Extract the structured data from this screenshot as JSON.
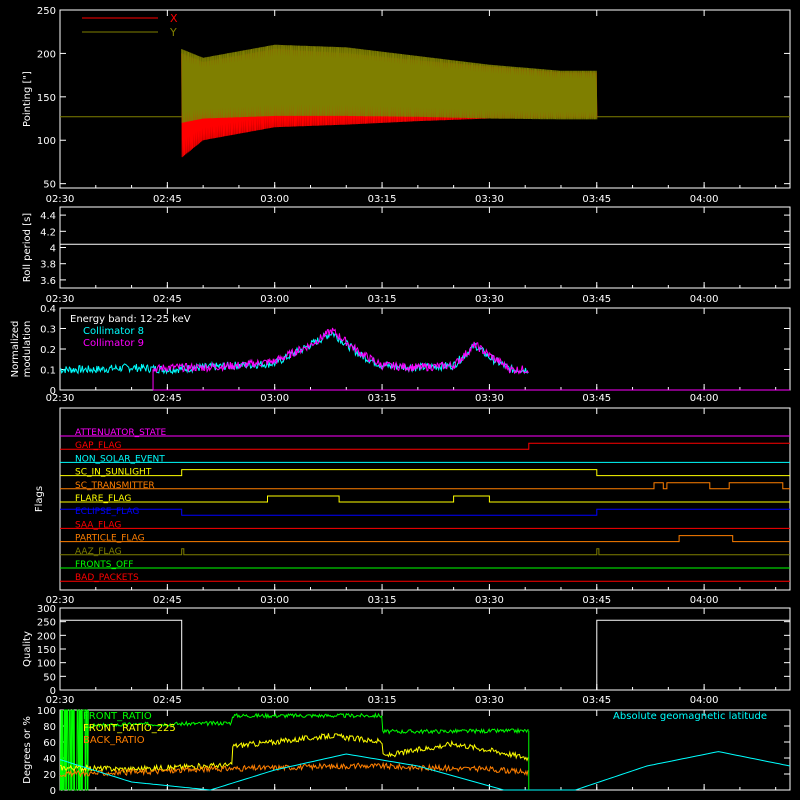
{
  "time_axis": {
    "ticks": [
      "02:30",
      "02:45",
      "03:00",
      "03:15",
      "03:30",
      "03:45",
      "04:00"
    ],
    "tick_minutes": [
      0,
      15,
      30,
      45,
      60,
      75,
      90
    ],
    "range_minutes": [
      0,
      102
    ]
  },
  "colors": {
    "background": "#000000",
    "foreground": "#ffffff",
    "red": "#ff0000",
    "olive": "#7f7f00",
    "cyan": "#00ffff",
    "magenta": "#ff00ff",
    "green": "#00ff00",
    "yellow": "#ffff00",
    "orange": "#ff7f00",
    "blue": "#0000ff"
  },
  "chart_data": [
    {
      "panel": "pointing",
      "type": "line",
      "ylabel": "Pointing [\"]",
      "ylim": [
        45,
        250
      ],
      "yticks": [
        50,
        100,
        150,
        200,
        250
      ],
      "legend": [
        {
          "name": "X",
          "color": "#ff0000"
        },
        {
          "name": "Y",
          "color": "#7f7f00"
        }
      ],
      "legend_position": "top-left",
      "baseline_value": 127,
      "oscillation_window_minutes": [
        17,
        75
      ],
      "x_envelope": {
        "minutes": [
          17,
          20,
          30,
          40,
          50,
          60,
          70,
          75
        ],
        "upper": [
          200,
          190,
          205,
          200,
          192,
          185,
          178,
          178
        ],
        "lower": [
          80,
          100,
          115,
          118,
          122,
          125,
          126,
          126
        ]
      },
      "y_envelope": {
        "minutes": [
          17,
          20,
          30,
          40,
          50,
          60,
          70,
          75
        ],
        "upper": [
          205,
          195,
          210,
          207,
          197,
          187,
          180,
          180
        ],
        "lower": [
          120,
          125,
          128,
          128,
          127,
          125,
          124,
          124
        ]
      }
    },
    {
      "panel": "roll_period",
      "type": "line",
      "ylabel": "Roll period [s]",
      "ylim": [
        3.5,
        4.5
      ],
      "yticks": [
        3.6,
        3.8,
        4.0,
        4.2,
        4.4
      ],
      "value": 4.04
    },
    {
      "panel": "modulation",
      "type": "line",
      "ylabel": "Normalized modulation",
      "ylim": [
        0,
        0.4
      ],
      "yticks": [
        0.0,
        0.1,
        0.2,
        0.3,
        0.4
      ],
      "annotation": "Energy band: 12-25 keV",
      "series": [
        {
          "name": "Collimator 8",
          "color": "#00ffff",
          "minutes": [
            0,
            5,
            10,
            15,
            20,
            25,
            30,
            35,
            38,
            42,
            45,
            50,
            55,
            58,
            60,
            63,
            65
          ],
          "values": [
            0.1,
            0.1,
            0.11,
            0.1,
            0.11,
            0.12,
            0.13,
            0.22,
            0.28,
            0.17,
            0.12,
            0.11,
            0.12,
            0.22,
            0.16,
            0.1,
            0.1
          ]
        },
        {
          "name": "Collimator 9",
          "color": "#ff00ff",
          "minutes": [
            13,
            15,
            20,
            25,
            30,
            35,
            38,
            42,
            45,
            50,
            55,
            58,
            60,
            63,
            65
          ],
          "values": [
            0.1,
            0.11,
            0.11,
            0.12,
            0.14,
            0.22,
            0.29,
            0.18,
            0.12,
            0.11,
            0.12,
            0.22,
            0.17,
            0.1,
            0.1
          ]
        }
      ],
      "data_end_minute": 65.5
    },
    {
      "panel": "flags",
      "type": "line",
      "ylabel": "Flags",
      "flags": [
        {
          "name": "ATTENUATOR_STATE",
          "color": "#ff00ff",
          "transitions": [],
          "initial": 0
        },
        {
          "name": "GAP_FLAG",
          "color": "#ff0000",
          "transitions": [
            65.5
          ],
          "initial": 0
        },
        {
          "name": "NON_SOLAR_EVENT",
          "color": "#00ffff",
          "transitions": [],
          "initial": 0
        },
        {
          "name": "SC_IN_SUNLIGHT",
          "color": "#ffff00",
          "transitions": [
            17,
            75
          ],
          "initial": 0
        },
        {
          "name": "SC_TRANSMITTER",
          "color": "#ff7f00",
          "transitions": [
            83,
            84.3,
            84.8,
            90.8,
            93.5,
            101
          ],
          "initial": 0
        },
        {
          "name": "FLARE_FLAG",
          "color": "#ffff00",
          "transitions": [
            29,
            39,
            55,
            60
          ],
          "initial": 0
        },
        {
          "name": "ECLIPSE_FLAG",
          "color": "#0000ff",
          "transitions": [
            17,
            75
          ],
          "initial": 1
        },
        {
          "name": "SAA_FLAG",
          "color": "#ff0000",
          "transitions": [],
          "initial": 0
        },
        {
          "name": "PARTICLE_FLAG",
          "color": "#ff7f00",
          "transitions": [
            86.5,
            94
          ],
          "initial": 0
        },
        {
          "name": "AAZ_FLAG",
          "color": "#7f7f00",
          "transitions": [
            17,
            17.3,
            75,
            75.3
          ],
          "initial": 0
        },
        {
          "name": "FRONTS_OFF",
          "color": "#00ff00",
          "transitions": [],
          "initial": 0
        },
        {
          "name": "BAD_PACKETS",
          "color": "#ff0000",
          "transitions": [],
          "initial": 0
        }
      ]
    },
    {
      "panel": "quality",
      "type": "line",
      "ylabel": "Quality",
      "ylim": [
        0,
        300
      ],
      "yticks": [
        0,
        50,
        100,
        150,
        200,
        250,
        300
      ],
      "minutes": [
        0,
        17,
        17.01,
        75,
        75.01,
        102
      ],
      "values": [
        255,
        255,
        0,
        0,
        255,
        255
      ]
    },
    {
      "panel": "degrees",
      "type": "line",
      "ylabel": "Degrees or %",
      "ylim": [
        0,
        100
      ],
      "yticks": [
        0,
        20,
        40,
        60,
        80,
        100
      ],
      "legend": [
        {
          "name": "FRONT_RATIO",
          "color": "#00ff00"
        },
        {
          "name": "FRONT_RATIO_225",
          "color": "#ffff00"
        },
        {
          "name": "BACK_RATIO",
          "color": "#ff7f00"
        }
      ],
      "annotation": {
        "text": "Absolute geomagnetic latitude",
        "color": "#00ffff"
      },
      "series": [
        {
          "name": "FRONT_RATIO",
          "color": "#00ff00",
          "minutes": [
            4,
            10,
            20,
            24,
            24.01,
            45,
            45.01,
            65.5
          ],
          "values": [
            80,
            82,
            83,
            84,
            93,
            93,
            73,
            74
          ]
        },
        {
          "name": "FRONT_RATIO_225",
          "color": "#ffff00",
          "minutes": [
            0,
            10,
            20,
            24,
            24.01,
            30,
            38,
            45,
            45.01,
            55,
            60,
            65.5
          ],
          "values": [
            28,
            26,
            30,
            31,
            55,
            60,
            68,
            60,
            42,
            58,
            50,
            40
          ]
        },
        {
          "name": "BACK_RATIO",
          "color": "#ff7f00",
          "minutes": [
            0,
            10,
            20,
            30,
            40,
            45,
            50,
            60,
            65.5
          ],
          "values": [
            20,
            22,
            26,
            28,
            30,
            30,
            28,
            26,
            22
          ]
        },
        {
          "name": "Absolute geomagnetic latitude",
          "color": "#00ffff",
          "minutes": [
            0,
            10,
            21,
            30,
            40,
            50,
            62,
            72,
            82,
            92,
            102
          ],
          "values": [
            38,
            10,
            0,
            25,
            45,
            30,
            0,
            0,
            30,
            48,
            30
          ]
        }
      ]
    }
  ]
}
